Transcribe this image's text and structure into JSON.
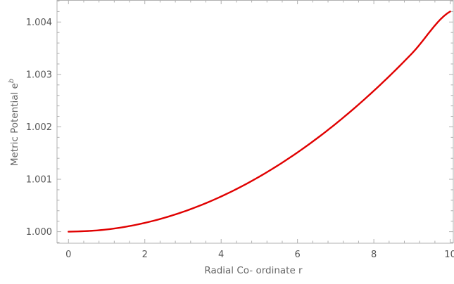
{
  "chart_data": {
    "type": "line",
    "xlabel": "Radial Co- ordinate r",
    "ylabel_main": "Metric Potential e",
    "ylabel_sup": "b",
    "xlim": [
      -0.3,
      10.1
    ],
    "ylim": [
      0.99978,
      1.00442
    ],
    "xticks": [
      0,
      2,
      4,
      6,
      8,
      10
    ],
    "xtick_labels": [
      "0",
      "2",
      "4",
      "6",
      "8",
      "10"
    ],
    "yticks": [
      1.0,
      1.001,
      1.002,
      1.003,
      1.004
    ],
    "ytick_labels": [
      "1.000",
      "1.001",
      "1.002",
      "1.003",
      "1.004"
    ],
    "grid": false,
    "series": [
      {
        "color": "#e00000",
        "x": [
          0,
          1,
          2,
          3,
          4,
          5,
          6,
          7,
          8,
          9,
          10
        ],
        "y": [
          1.0,
          1.000042,
          1.000168,
          1.000378,
          1.000672,
          1.00105,
          1.001512,
          1.002058,
          1.002688,
          1.003402,
          1.0042
        ]
      }
    ]
  }
}
